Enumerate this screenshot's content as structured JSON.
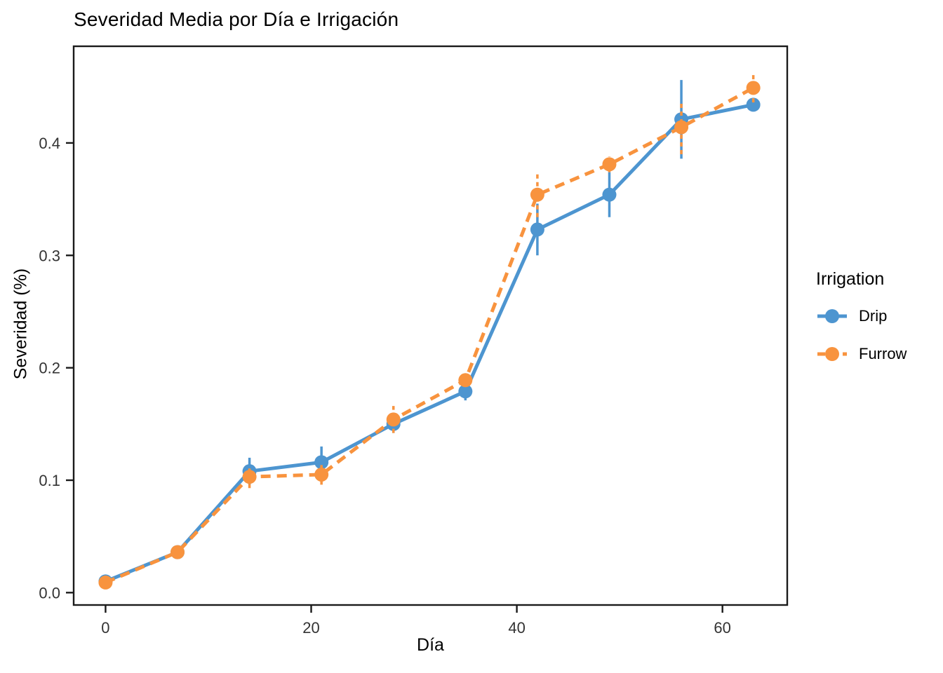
{
  "chart": {
    "title": "Severidad Media por Día e Irrigación",
    "xlabel": "Día",
    "ylabel": "Severidad (%)",
    "legend_title": "Irrigation"
  },
  "theme": {
    "background": "#FFFFFF",
    "axis_color": "#1A1A1A",
    "tick_label_color": "#333333",
    "title_color": "#000000",
    "drip_color": "#4D95D0",
    "furrow_color": "#F8933E"
  },
  "chart_data": {
    "type": "line",
    "title": "Severidad Media por Día e Irrigación",
    "xlabel": "Día",
    "ylabel": "Severidad (%)",
    "legend_title": "Irrigation",
    "legend_position": "right",
    "grid": false,
    "error_bars": true,
    "x": [
      0,
      7,
      14,
      21,
      28,
      35,
      42,
      49,
      56,
      63
    ],
    "x_ticks": [
      0,
      20,
      40,
      60
    ],
    "y_ticks": [
      0.0,
      0.1,
      0.2,
      0.3,
      0.4
    ],
    "xlim": [
      -3.1,
      66.3
    ],
    "ylim": [
      -0.011,
      0.486
    ],
    "series": [
      {
        "name": "Drip",
        "color": "#4D95D0",
        "linetype": "solid",
        "values": [
          0.01,
          0.036,
          0.108,
          0.116,
          0.15,
          0.179,
          0.323,
          0.354,
          0.421,
          0.434
        ],
        "errors": [
          0.003,
          0.004,
          0.012,
          0.014,
          0.008,
          0.008,
          0.023,
          0.02,
          0.035,
          0.006
        ]
      },
      {
        "name": "Furrow",
        "color": "#F8933E",
        "linetype": "dashed",
        "values": [
          0.009,
          0.036,
          0.103,
          0.105,
          0.154,
          0.189,
          0.354,
          0.381,
          0.414,
          0.449
        ],
        "errors": [
          0.003,
          0.004,
          0.01,
          0.009,
          0.012,
          0.006,
          0.02,
          0.007,
          0.024,
          0.013
        ]
      }
    ]
  }
}
